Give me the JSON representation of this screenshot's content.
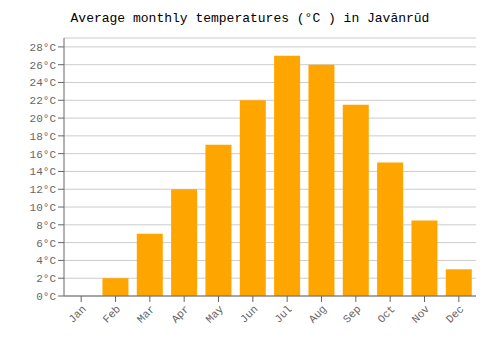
{
  "chart_data": {
    "type": "bar",
    "title": "Average monthly temperatures (°C ) in Javānrūd",
    "categories": [
      "Jan",
      "Feb",
      "Mar",
      "Apr",
      "May",
      "Jun",
      "Jul",
      "Aug",
      "Sep",
      "Oct",
      "Nov",
      "Dec"
    ],
    "values": [
      0,
      2,
      7,
      12,
      17,
      22,
      27,
      26,
      21.5,
      15,
      8.5,
      3
    ],
    "color": "#FFA500",
    "ylim": [
      0,
      29
    ],
    "yticks": [
      {
        "value": 0,
        "label": "0°C"
      },
      {
        "value": 2,
        "label": "2°C"
      },
      {
        "value": 4,
        "label": "4°C"
      },
      {
        "value": 6,
        "label": "6°C"
      },
      {
        "value": 8,
        "label": "8°C"
      },
      {
        "value": 10,
        "label": "10°C"
      },
      {
        "value": 12,
        "label": "12°C"
      },
      {
        "value": 14,
        "label": "14°C"
      },
      {
        "value": 16,
        "label": "16°C"
      },
      {
        "value": 18,
        "label": "18°C"
      },
      {
        "value": 20,
        "label": "20°C"
      },
      {
        "value": 22,
        "label": "22°C"
      },
      {
        "value": 24,
        "label": "24°C"
      },
      {
        "value": 26,
        "label": "26°C"
      },
      {
        "value": 28,
        "label": "28°C"
      }
    ],
    "grid": true
  }
}
